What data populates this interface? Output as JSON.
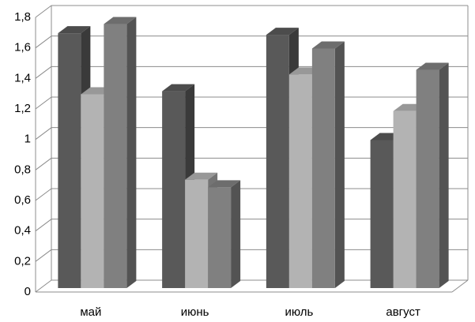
{
  "chart_data": {
    "type": "bar3d",
    "categories": [
      "май",
      "июнь",
      "июль",
      "август"
    ],
    "series": [
      {
        "color": "#595959",
        "values": [
          1.67,
          1.29,
          1.66,
          0.97
        ]
      },
      {
        "color": "#b3b3b3",
        "values": [
          1.27,
          0.71,
          1.4,
          1.16
        ]
      },
      {
        "color": "#808080",
        "values": [
          1.73,
          0.66,
          1.57,
          1.43
        ]
      }
    ],
    "ylim": [
      0,
      1.8
    ],
    "yticks": [
      0,
      {
        "value": 0.2,
        "label": "0,2"
      },
      {
        "value": 0.4,
        "label": "0,4"
      },
      {
        "value": 0.6,
        "label": "0,6"
      },
      {
        "value": 0.8,
        "label": "0,8"
      },
      1,
      {
        "value": 1.2,
        "label": "1,2"
      },
      {
        "value": 1.4,
        "label": "1,4"
      },
      {
        "value": 1.6,
        "label": "1,6"
      },
      {
        "value": 1.8,
        "label": "1,8"
      }
    ],
    "grid": true
  }
}
